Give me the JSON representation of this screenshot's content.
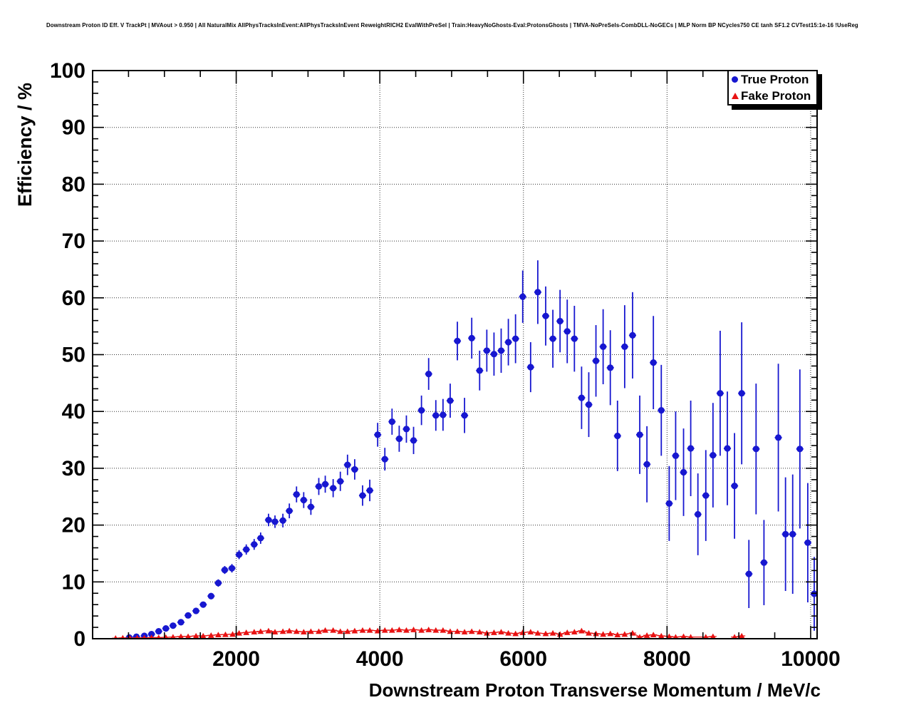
{
  "header": {
    "title": "Downstream Proton ID Eff. V TrackPt | MVAout > 0.950 | All NaturalMix AllPhysTracksInEvent:AllPhysTracksInEvent ReweightRICH2 EvalWithPreSel | Train:HeavyNoGhosts-Eval:ProtonsGhosts | TMVA-NoPreSels-CombDLL-NoGECs | MLP Norm BP NCycles750 CE tanh SF1.2 CVTest15:1e-16 !UseReg"
  },
  "legend": {
    "items": [
      {
        "label": "True Proton",
        "marker": "circle",
        "color": "#1717d0"
      },
      {
        "label": "Fake Proton",
        "marker": "triangle",
        "color": "#e81212"
      }
    ]
  },
  "colors": {
    "true_proton": "#1717d0",
    "fake_proton": "#e81212",
    "frame": "#000000",
    "background": "#ffffff"
  },
  "chart_data": {
    "type": "scatter",
    "title": "",
    "xlabel": "Downstream Proton Transverse Momentum / MeV/c",
    "ylabel": "Efficiency / %",
    "xlim": [
      0,
      10090
    ],
    "ylim": [
      0,
      100
    ],
    "x_ticks": [
      2000,
      4000,
      6000,
      8000,
      10000
    ],
    "y_ticks": [
      0,
      10,
      20,
      30,
      40,
      50,
      60,
      70,
      80,
      90,
      100
    ],
    "x_minor_step": 500,
    "y_minor_step": 2,
    "grid": true,
    "legend_position": "top-right",
    "series": [
      {
        "name": "True Proton",
        "marker": "circle",
        "color": "#1717d0",
        "xerr": 50,
        "line": false,
        "points": [
          [
            510,
            0.2,
            0.15
          ],
          [
            610,
            0.35,
            0.15
          ],
          [
            720,
            0.5,
            0.2
          ],
          [
            820,
            0.8,
            0.2
          ],
          [
            920,
            1.3,
            0.25
          ],
          [
            1020,
            1.8,
            0.3
          ],
          [
            1120,
            2.3,
            0.3
          ],
          [
            1230,
            2.9,
            0.35
          ],
          [
            1330,
            4.1,
            0.4
          ],
          [
            1440,
            4.9,
            0.45
          ],
          [
            1540,
            6.0,
            0.5
          ],
          [
            1650,
            7.5,
            0.55
          ],
          [
            1750,
            9.8,
            0.65
          ],
          [
            1840,
            12.1,
            0.7
          ],
          [
            1940,
            12.4,
            0.75
          ],
          [
            2040,
            14.8,
            0.8
          ],
          [
            2140,
            15.7,
            0.9
          ],
          [
            2250,
            16.6,
            0.95
          ],
          [
            2340,
            17.7,
            1.0
          ],
          [
            2450,
            20.9,
            1.1
          ],
          [
            2540,
            20.6,
            1.1
          ],
          [
            2650,
            20.8,
            1.2
          ],
          [
            2740,
            22.5,
            1.3
          ],
          [
            2840,
            25.4,
            1.4
          ],
          [
            2940,
            24.4,
            1.4
          ],
          [
            3040,
            23.2,
            1.4
          ],
          [
            3150,
            26.8,
            1.5
          ],
          [
            3240,
            27.2,
            1.5
          ],
          [
            3350,
            26.5,
            1.6
          ],
          [
            3450,
            27.7,
            1.7
          ],
          [
            3550,
            30.6,
            1.8
          ],
          [
            3650,
            29.8,
            1.8
          ],
          [
            3760,
            25.2,
            1.8
          ],
          [
            3860,
            26.1,
            1.9
          ],
          [
            3970,
            35.9,
            2.1
          ],
          [
            4070,
            31.6,
            2.0
          ],
          [
            4170,
            38.2,
            2.3
          ],
          [
            4270,
            35.2,
            2.3
          ],
          [
            4370,
            36.9,
            2.4
          ],
          [
            4470,
            34.9,
            2.4
          ],
          [
            4580,
            40.2,
            2.6
          ],
          [
            4680,
            46.6,
            2.8
          ],
          [
            4780,
            39.3,
            2.7
          ],
          [
            4880,
            39.4,
            2.8
          ],
          [
            4980,
            41.9,
            3.0
          ],
          [
            5080,
            52.4,
            3.4
          ],
          [
            5180,
            39.3,
            3.1
          ],
          [
            5280,
            52.9,
            3.6
          ],
          [
            5390,
            47.2,
            3.5
          ],
          [
            5490,
            50.7,
            3.7
          ],
          [
            5590,
            50.1,
            3.8
          ],
          [
            5690,
            50.7,
            3.9
          ],
          [
            5790,
            52.2,
            4.1
          ],
          [
            5890,
            52.8,
            4.3
          ],
          [
            5990,
            60.2,
            4.6
          ],
          [
            6100,
            47.8,
            4.4
          ],
          [
            6200,
            61.0,
            5.6
          ],
          [
            6310,
            56.8,
            5.2
          ],
          [
            6410,
            52.8,
            5.1
          ],
          [
            6510,
            55.9,
            5.5
          ],
          [
            6610,
            54.1,
            5.6
          ],
          [
            6710,
            52.8,
            5.8
          ],
          [
            6810,
            42.4,
            5.5
          ],
          [
            6910,
            41.2,
            5.7
          ],
          [
            7010,
            48.9,
            6.3
          ],
          [
            7110,
            51.4,
            6.6
          ],
          [
            7210,
            47.7,
            6.6
          ],
          [
            7310,
            35.7,
            6.2
          ],
          [
            7410,
            51.4,
            7.3
          ],
          [
            7520,
            53.4,
            7.6
          ],
          [
            7620,
            35.9,
            6.9
          ],
          [
            7720,
            30.7,
            6.7
          ],
          [
            7810,
            48.6,
            8.2
          ],
          [
            7920,
            40.2,
            8.0
          ],
          [
            8030,
            23.8,
            6.6
          ],
          [
            8120,
            32.2,
            7.8
          ],
          [
            8230,
            29.3,
            7.7
          ],
          [
            8330,
            33.5,
            8.4
          ],
          [
            8430,
            21.9,
            7.2
          ],
          [
            8540,
            25.2,
            8.0
          ],
          [
            8640,
            32.3,
            9.2
          ],
          [
            8740,
            43.2,
            11.0
          ],
          [
            8840,
            33.5,
            10.0
          ],
          [
            8940,
            26.9,
            9.3
          ],
          [
            9040,
            43.2,
            12.5
          ],
          [
            9140,
            11.4,
            6.0
          ],
          [
            9240,
            33.4,
            11.5
          ],
          [
            9350,
            13.4,
            7.5
          ],
          [
            9550,
            35.4,
            13.0
          ],
          [
            9650,
            18.4,
            10.0
          ],
          [
            9750,
            18.4,
            10.5
          ],
          [
            9850,
            33.4,
            14.0
          ],
          [
            9960,
            16.9,
            10.5
          ],
          [
            10050,
            7.9,
            6.5
          ]
        ]
      },
      {
        "name": "Fake Proton",
        "marker": "triangle",
        "color": "#e81212",
        "xerr": 50,
        "line": true,
        "points": [
          [
            320,
            0.1,
            0.1
          ],
          [
            420,
            0.15,
            0.1
          ],
          [
            520,
            0.1,
            0.1
          ],
          [
            620,
            0.15,
            0.1
          ],
          [
            720,
            0.15,
            0.1
          ],
          [
            820,
            0.2,
            0.1
          ],
          [
            920,
            0.2,
            0.1
          ],
          [
            1020,
            0.25,
            0.15
          ],
          [
            1120,
            0.3,
            0.15
          ],
          [
            1230,
            0.4,
            0.15
          ],
          [
            1330,
            0.4,
            0.15
          ],
          [
            1440,
            0.5,
            0.15
          ],
          [
            1540,
            0.5,
            0.15
          ],
          [
            1650,
            0.6,
            0.2
          ],
          [
            1750,
            0.7,
            0.2
          ],
          [
            1850,
            0.75,
            0.2
          ],
          [
            1950,
            0.8,
            0.2
          ],
          [
            2040,
            1.0,
            0.25
          ],
          [
            2140,
            1.1,
            0.25
          ],
          [
            2250,
            1.2,
            0.25
          ],
          [
            2340,
            1.3,
            0.25
          ],
          [
            2450,
            1.4,
            0.25
          ],
          [
            2540,
            1.2,
            0.25
          ],
          [
            2650,
            1.3,
            0.25
          ],
          [
            2740,
            1.4,
            0.25
          ],
          [
            2840,
            1.3,
            0.25
          ],
          [
            2940,
            1.2,
            0.25
          ],
          [
            3040,
            1.3,
            0.25
          ],
          [
            3150,
            1.3,
            0.25
          ],
          [
            3240,
            1.5,
            0.3
          ],
          [
            3350,
            1.5,
            0.3
          ],
          [
            3450,
            1.3,
            0.3
          ],
          [
            3550,
            1.3,
            0.3
          ],
          [
            3650,
            1.4,
            0.3
          ],
          [
            3760,
            1.5,
            0.3
          ],
          [
            3860,
            1.5,
            0.3
          ],
          [
            3970,
            1.4,
            0.3
          ],
          [
            4070,
            1.5,
            0.3
          ],
          [
            4170,
            1.5,
            0.3
          ],
          [
            4270,
            1.6,
            0.3
          ],
          [
            4370,
            1.5,
            0.3
          ],
          [
            4470,
            1.6,
            0.3
          ],
          [
            4580,
            1.5,
            0.3
          ],
          [
            4680,
            1.6,
            0.3
          ],
          [
            4780,
            1.5,
            0.3
          ],
          [
            4880,
            1.5,
            0.3
          ],
          [
            4980,
            1.3,
            0.3
          ],
          [
            5080,
            1.3,
            0.3
          ],
          [
            5180,
            1.2,
            0.3
          ],
          [
            5280,
            1.3,
            0.3
          ],
          [
            5390,
            1.2,
            0.3
          ],
          [
            5490,
            1.0,
            0.3
          ],
          [
            5590,
            1.1,
            0.3
          ],
          [
            5690,
            1.2,
            0.3
          ],
          [
            5790,
            1.0,
            0.3
          ],
          [
            5890,
            0.9,
            0.3
          ],
          [
            5990,
            1.1,
            0.3
          ],
          [
            6100,
            1.2,
            0.3
          ],
          [
            6200,
            1.0,
            0.3
          ],
          [
            6310,
            0.9,
            0.3
          ],
          [
            6410,
            1.0,
            0.3
          ],
          [
            6510,
            0.8,
            0.3
          ],
          [
            6610,
            1.1,
            0.3
          ],
          [
            6710,
            1.2,
            0.35
          ],
          [
            6810,
            1.4,
            0.35
          ],
          [
            6910,
            1.0,
            0.35
          ],
          [
            7010,
            0.9,
            0.35
          ],
          [
            7110,
            0.8,
            0.35
          ],
          [
            7210,
            0.9,
            0.35
          ],
          [
            7310,
            0.7,
            0.35
          ],
          [
            7410,
            0.8,
            0.35
          ],
          [
            7520,
            1.0,
            0.4
          ],
          [
            7620,
            0.3,
            0.3
          ],
          [
            7720,
            0.6,
            0.35
          ],
          [
            7810,
            0.7,
            0.4
          ],
          [
            7920,
            0.5,
            0.35
          ],
          [
            8030,
            0.4,
            0.35
          ],
          [
            8120,
            0.3,
            0.3
          ],
          [
            8230,
            0.4,
            0.35
          ],
          [
            8330,
            0.3,
            0.3
          ],
          [
            8540,
            0.3,
            0.3
          ],
          [
            8640,
            0.4,
            0.35
          ],
          [
            8940,
            0.3,
            0.3
          ],
          [
            9040,
            0.5,
            0.4
          ]
        ]
      }
    ]
  }
}
